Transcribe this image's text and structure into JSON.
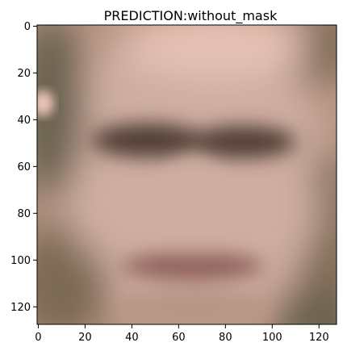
{
  "figure": {
    "title": "PREDICTION:without_mask",
    "image_size": [
      128,
      128
    ],
    "x_ticks": [
      0,
      20,
      40,
      60,
      80,
      100,
      120
    ],
    "y_ticks": [
      0,
      20,
      40,
      60,
      80,
      100,
      120
    ],
    "x_tick_labels": [
      "0",
      "20",
      "40",
      "60",
      "80",
      "100",
      "120"
    ],
    "y_tick_labels": [
      "0",
      "20",
      "40",
      "60",
      "80",
      "100",
      "120"
    ],
    "palette": {
      "skin_base": "#b89585",
      "skin_light": "#cfaea1",
      "forehead_highlight": "#e6c2b5",
      "background_dark": "#6a624f",
      "background_edge": "#7d6a55",
      "eye_shadow": "#4f3d34",
      "mouth": "#8e5f5a"
    }
  }
}
